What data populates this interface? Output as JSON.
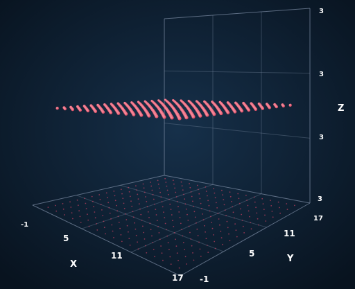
{
  "chart_data": {
    "type": "scatter",
    "subtype": "3d-scatter",
    "title": "",
    "xlabel": "X",
    "ylabel": "Y",
    "zlabel": "Z",
    "x_ticks": [
      "-1",
      "5",
      "11",
      "17"
    ],
    "y_ticks": [
      "-1",
      "5",
      "11",
      "17"
    ],
    "z_ticks": [
      "3",
      "3",
      "3",
      "3"
    ],
    "xlim": [
      -1,
      17
    ],
    "ylim": [
      -1,
      17
    ],
    "z_value": 3,
    "grid": true,
    "legend": "none",
    "series": [
      {
        "x_range": [
          0,
          16
        ],
        "x_step": 1,
        "y_range": [
          0,
          16
        ],
        "y_step": 1,
        "z": 3,
        "marker_color": "#e8627a",
        "shadow_color": "#c84060"
      }
    ]
  },
  "colors": {
    "background": "#0c1a2c",
    "grid": "#7f8fa6",
    "point": "#e8627a"
  }
}
